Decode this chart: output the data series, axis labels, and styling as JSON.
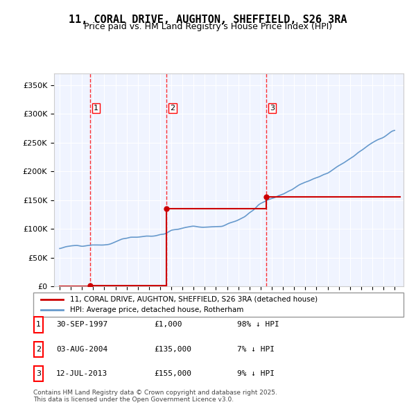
{
  "title": "11, CORAL DRIVE, AUGHTON, SHEFFIELD, S26 3RA",
  "subtitle": "Price paid vs. HM Land Registry's House Price Index (HPI)",
  "ylabel": "",
  "xlabel": "",
  "ylim": [
    0,
    370000
  ],
  "yticks": [
    0,
    50000,
    100000,
    150000,
    200000,
    250000,
    300000,
    350000
  ],
  "ytick_labels": [
    "£0",
    "£50K",
    "£100K",
    "£150K",
    "£200K",
    "£250K",
    "£300K",
    "£350K"
  ],
  "sale_dates_num": [
    1997.747,
    2004.587,
    2013.527
  ],
  "sale_prices": [
    1000,
    135000,
    155000
  ],
  "sale_labels": [
    "1",
    "2",
    "3"
  ],
  "legend_line1": "11, CORAL DRIVE, AUGHTON, SHEFFIELD, S26 3RA (detached house)",
  "legend_line2": "HPI: Average price, detached house, Rotherham",
  "table_data": [
    [
      "1",
      "30-SEP-1997",
      "£1,000",
      "98% ↓ HPI"
    ],
    [
      "2",
      "03-AUG-2004",
      "£135,000",
      "7% ↓ HPI"
    ],
    [
      "3",
      "12-JUL-2013",
      "£155,000",
      "9% ↓ HPI"
    ]
  ],
  "footer": "Contains HM Land Registry data © Crown copyright and database right 2025.\nThis data is licensed under the Open Government Licence v3.0.",
  "hpi_color": "#6699cc",
  "price_color": "#cc0000",
  "bg_color": "#ddeeff",
  "plot_bg": "#f0f4ff"
}
